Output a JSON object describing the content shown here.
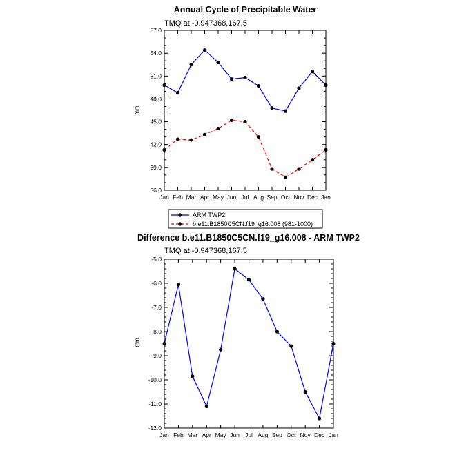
{
  "chart_data": [
    {
      "type": "line",
      "title": "Annual Cycle of Precipitable Water",
      "subtitle": "TMQ at -0.947368,167.5",
      "xlabel": "",
      "ylabel": "mm",
      "categories": [
        "Jan",
        "Feb",
        "Mar",
        "Apr",
        "May",
        "Jun",
        "Jul",
        "Aug",
        "Sep",
        "Oct",
        "Nov",
        "Dec",
        "Jan"
      ],
      "yticks": [
        "36.0",
        "39.0",
        "42.0",
        "45.0",
        "48.0",
        "51.0",
        "54.0",
        "57.0"
      ],
      "ylim": [
        36.0,
        57.0
      ],
      "grid": false,
      "legend_position": "bottom-left",
      "series": [
        {
          "name": "ARM TWP2",
          "color": "#0000ff",
          "dash": "solid",
          "values": [
            49.8,
            48.8,
            52.5,
            54.4,
            52.8,
            50.6,
            50.8,
            49.7,
            46.8,
            46.4,
            49.4,
            51.6,
            49.8
          ]
        },
        {
          "name": "b.e11.B1850C5CN.f19_g16.008 (981-1000)",
          "color": "#ff0000",
          "dash": "dashed",
          "values": [
            41.3,
            42.7,
            42.6,
            43.3,
            44.1,
            45.2,
            45.0,
            43.0,
            38.8,
            37.7,
            38.8,
            40.0,
            41.3
          ]
        }
      ]
    },
    {
      "type": "line",
      "title": "Difference b.e11.B1850C5CN.f19_g16.008 - ARM TWP2",
      "subtitle": "TMQ at -0.947368,167.5",
      "xlabel": "",
      "ylabel": "mm",
      "categories": [
        "Jan",
        "Feb",
        "Mar",
        "Apr",
        "May",
        "Jun",
        "Jul",
        "Aug",
        "Sep",
        "Oct",
        "Nov",
        "Dec",
        "Jan"
      ],
      "yticks": [
        "-12.0",
        "-11.0",
        "-10.0",
        "-9.0",
        "-8.0",
        "-7.0",
        "-6.0",
        "-5.0"
      ],
      "ylim": [
        -12.0,
        -5.0
      ],
      "grid": false,
      "series": [
        {
          "color": "#0000ff",
          "dash": "solid",
          "values": [
            -8.5,
            -6.05,
            -9.85,
            -11.1,
            -8.75,
            -5.4,
            -5.85,
            -6.65,
            -8.0,
            -8.6,
            -10.5,
            -11.6,
            -8.5
          ]
        }
      ]
    }
  ]
}
